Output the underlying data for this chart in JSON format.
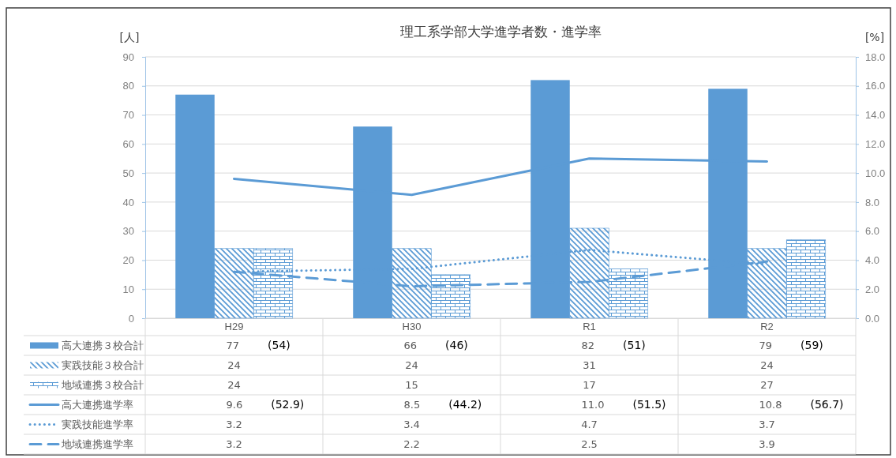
{
  "chart_data": {
    "type": "bar",
    "title": "理工系学部大学進学者数・進学率",
    "ylabel": "[人]",
    "y2label": "[%]",
    "categories": [
      "H29",
      "H30",
      "R1",
      "R2"
    ],
    "series": [
      {
        "name": "高大連携３校合計",
        "color": "#5b9bd5",
        "values": [
          77,
          66,
          82,
          79
        ],
        "value_labels": [
          "77 (54)",
          "66 (46)",
          "82 (51)",
          "79 (59)"
        ]
      },
      {
        "name": "実践技能３校合計",
        "color": "#5b9bd5",
        "values": [
          24,
          24,
          31,
          24
        ],
        "value_labels": [
          "24",
          "24",
          "31",
          "24"
        ]
      },
      {
        "name": "地域連携３校合計",
        "color": "#5b9bd5",
        "values": [
          24,
          15,
          17,
          27
        ],
        "value_labels": [
          "24",
          "15",
          "17",
          "27"
        ]
      },
      {
        "name": "高大連携進学率",
        "type": "line",
        "axis": "y2",
        "line_style": "solid",
        "color": "#5b9bd5",
        "values": [
          9.6,
          8.5,
          11.0,
          10.8
        ],
        "value_labels": [
          "9.6 (52.9)",
          "8.5 (44.2)",
          "11.0 (51.5)",
          "10.8 (56.7)"
        ]
      },
      {
        "name": "実践技能進学率",
        "type": "line",
        "axis": "y2",
        "line_style": "dotted",
        "color": "#5b9bd5",
        "values": [
          3.2,
          3.4,
          4.7,
          3.7
        ],
        "value_labels": [
          "3.2",
          "3.4",
          "4.7",
          "3.7"
        ]
      },
      {
        "name": "地域連携進学率",
        "type": "line",
        "axis": "y2",
        "line_style": "dashed",
        "color": "#5b9bd5",
        "values": [
          3.2,
          2.2,
          2.5,
          3.9
        ],
        "value_labels": [
          "3.2",
          "2.2",
          "2.5",
          "3.9"
        ]
      }
    ],
    "ylim": [
      0,
      90
    ],
    "yticks": [
      0,
      10,
      20,
      30,
      40,
      50,
      60,
      70,
      80,
      90
    ],
    "y2lim": [
      0,
      18
    ],
    "y2ticks": [
      {
        "value": 0,
        "label": "0.0"
      },
      {
        "value": 2,
        "label": "2.0"
      },
      {
        "value": 4,
        "label": "4.0"
      },
      {
        "value": 6,
        "label": "6.0"
      },
      {
        "value": 8,
        "label": "8.0"
      },
      {
        "value": 10,
        "label": "10.0"
      },
      {
        "value": 12,
        "label": "12.0"
      },
      {
        "value": 14,
        "label": "14.0"
      },
      {
        "value": 16,
        "label": "16.0"
      },
      {
        "value": 18,
        "label": "18.0"
      }
    ],
    "grid": "y",
    "legend": "bottom"
  }
}
